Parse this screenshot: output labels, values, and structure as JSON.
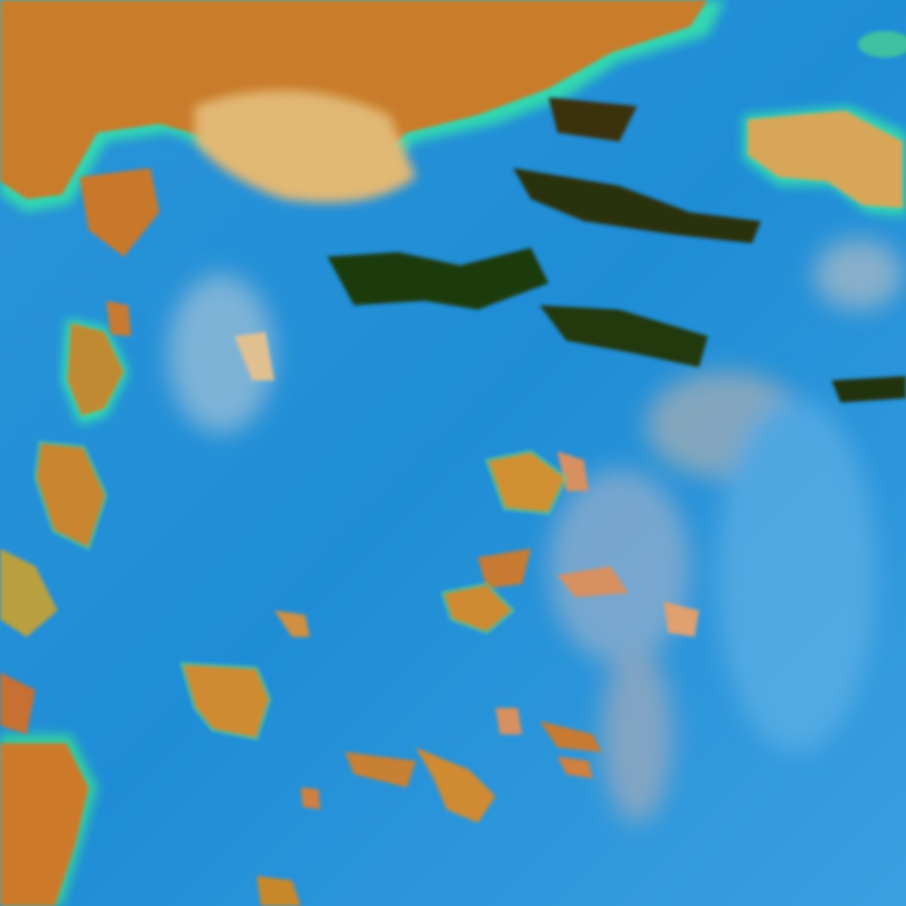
{
  "image": {
    "kind": "false-color satellite imagery",
    "colors": {
      "sea": "#1f8fd8",
      "sea_light": "#4fb0e6",
      "haze": "#b8c8d8",
      "land": "#d0862e",
      "land_light": "#e0b070",
      "ridge": "#2a3a10",
      "coast": "#30e0b0"
    }
  }
}
